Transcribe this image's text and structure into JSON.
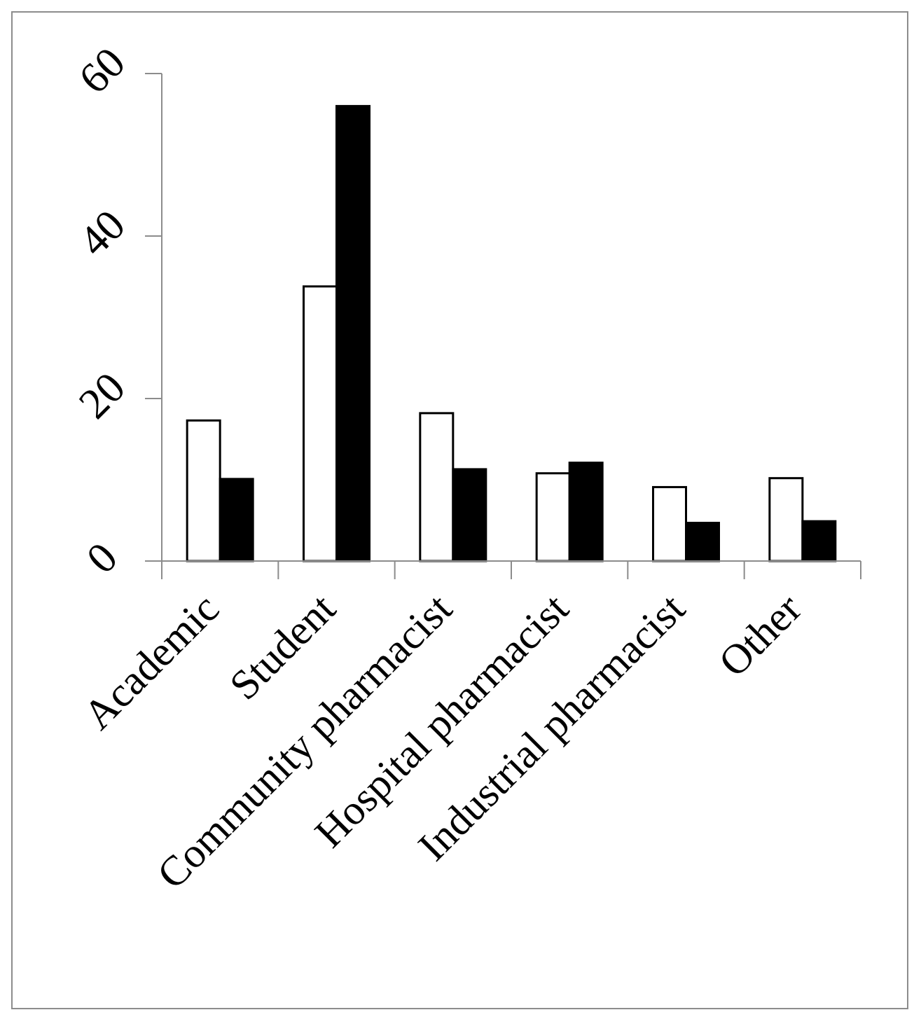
{
  "chart_data": {
    "type": "bar",
    "title": "",
    "xlabel": "",
    "ylabel": "",
    "categories": [
      "Academic",
      "Student",
      "Community pharmacist",
      "Hospital pharmacist",
      "Industrial pharmacist",
      "Other"
    ],
    "series": [
      {
        "values": [
          17.3,
          33.8,
          18.2,
          10.8,
          9.1,
          10.2
        ],
        "fill": "#ffffff"
      },
      {
        "values": [
          10.1,
          56.0,
          11.3,
          12.1,
          4.7,
          4.9
        ],
        "fill": "#000000"
      }
    ],
    "ylim": [
      0,
      60
    ],
    "yticks": [
      0,
      20,
      40,
      60
    ],
    "grid": false,
    "legend": "none"
  }
}
